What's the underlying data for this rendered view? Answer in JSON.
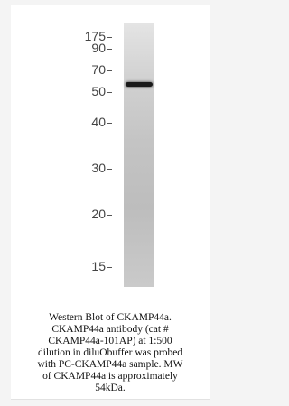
{
  "blot": {
    "markers": [
      "175",
      "90",
      "70",
      "50",
      "40",
      "30",
      "20",
      "15"
    ]
  },
  "caption": [
    "Western Blot of CKAMP44a.",
    "CKAMP44a antibody (cat #",
    "CKAMP44a-101AP) at 1:500",
    "dilution in diluObuffer was probed",
    "with PC-CKAMP44a sample. MW",
    "of CKAMP44a is approximately",
    "54kDa."
  ]
}
